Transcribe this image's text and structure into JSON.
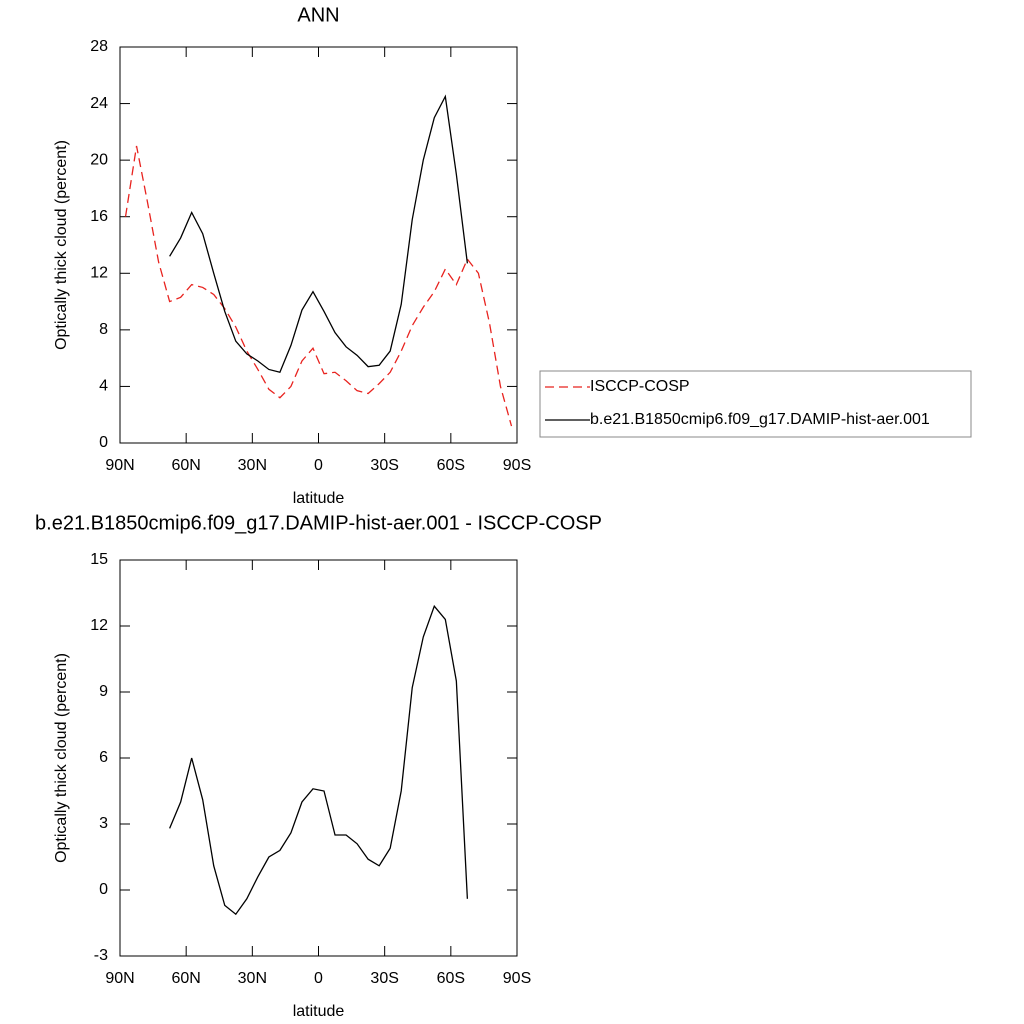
{
  "chart_data": [
    {
      "type": "line",
      "title": "ANN",
      "xlabel": "latitude",
      "ylabel": "Optically thick cloud (percent)",
      "x": [
        87.5,
        82.5,
        77.5,
        72.5,
        67.5,
        62.5,
        57.5,
        52.5,
        47.5,
        42.5,
        37.5,
        32.5,
        27.5,
        22.5,
        17.5,
        12.5,
        7.5,
        2.5,
        -2.5,
        -7.5,
        -12.5,
        -17.5,
        -22.5,
        -27.5,
        -32.5,
        -37.5,
        -42.5,
        -47.5,
        -52.5,
        -57.5,
        -62.5,
        -67.5,
        -72.5,
        -77.5,
        -82.5,
        -87.5
      ],
      "series": [
        {
          "name": "ISCCP-COSP",
          "color": "#e8231f",
          "dashed": true,
          "values": [
            16.0,
            21.0,
            17.0,
            12.8,
            10.0,
            10.3,
            11.2,
            11.0,
            10.5,
            9.5,
            8.2,
            6.5,
            5.2,
            3.8,
            3.2,
            4.0,
            5.8,
            6.7,
            4.9,
            5.0,
            4.4,
            3.7,
            3.5,
            4.2,
            5.0,
            6.5,
            8.3,
            9.6,
            10.7,
            12.3,
            11.2,
            13.0,
            12.0,
            8.5,
            4.0,
            1.2
          ]
        },
        {
          "name": "b.e21.B1850cmip6.f09_g17.DAMIP-hist-aer.001",
          "color": "#000000",
          "dashed": false,
          "values": [
            null,
            null,
            null,
            null,
            13.2,
            14.5,
            16.3,
            14.8,
            12.0,
            9.3,
            7.2,
            6.3,
            5.8,
            5.2,
            5.0,
            6.9,
            9.4,
            10.7,
            9.3,
            7.8,
            6.8,
            6.2,
            5.4,
            5.5,
            6.5,
            9.8,
            15.8,
            20.0,
            23.0,
            24.5,
            19.0,
            12.7,
            null,
            null,
            null,
            null
          ]
        }
      ],
      "xlim": [
        90,
        -90
      ],
      "xticks": [
        {
          "value": 90,
          "label": "90N"
        },
        {
          "value": 60,
          "label": "60N"
        },
        {
          "value": 30,
          "label": "30N"
        },
        0,
        {
          "value": -30,
          "label": "30S"
        },
        {
          "value": -60,
          "label": "60S"
        },
        {
          "value": -90,
          "label": "90S"
        }
      ],
      "ylim": [
        0,
        28
      ],
      "yticks": [
        0,
        4,
        8,
        12,
        16,
        20,
        24,
        28
      ],
      "legend": "right"
    },
    {
      "type": "line",
      "title": "b.e21.B1850cmip6.f09_g17.DAMIP-hist-aer.001 - ISCCP-COSP",
      "xlabel": "latitude",
      "ylabel": "Optically thick cloud (percent)",
      "x": [
        87.5,
        82.5,
        77.5,
        72.5,
        67.5,
        62.5,
        57.5,
        52.5,
        47.5,
        42.5,
        37.5,
        32.5,
        27.5,
        22.5,
        17.5,
        12.5,
        7.5,
        2.5,
        -2.5,
        -7.5,
        -12.5,
        -17.5,
        -22.5,
        -27.5,
        -32.5,
        -37.5,
        -42.5,
        -47.5,
        -52.5,
        -57.5,
        -62.5,
        -67.5,
        -72.5,
        -77.5,
        -82.5,
        -87.5
      ],
      "series": [
        {
          "color": "#000000",
          "dashed": false,
          "values": [
            null,
            null,
            null,
            null,
            2.8,
            4.0,
            6.0,
            4.1,
            1.1,
            -0.7,
            -1.1,
            -0.4,
            0.6,
            1.5,
            1.8,
            2.6,
            4.0,
            4.6,
            4.5,
            2.5,
            2.5,
            2.1,
            1.4,
            1.1,
            1.9,
            4.5,
            9.2,
            11.5,
            12.9,
            12.3,
            9.5,
            -0.4,
            null,
            null,
            null,
            null
          ]
        }
      ],
      "xlim": [
        90,
        -90
      ],
      "xticks": [
        {
          "value": 90,
          "label": "90N"
        },
        {
          "value": 60,
          "label": "60N"
        },
        {
          "value": 30,
          "label": "30N"
        },
        0,
        {
          "value": -30,
          "label": "30S"
        },
        {
          "value": -60,
          "label": "60S"
        },
        {
          "value": -90,
          "label": "90S"
        }
      ],
      "ylim": [
        -3,
        15
      ],
      "yticks": [
        -3,
        0,
        3,
        6,
        9,
        12,
        15
      ]
    }
  ]
}
